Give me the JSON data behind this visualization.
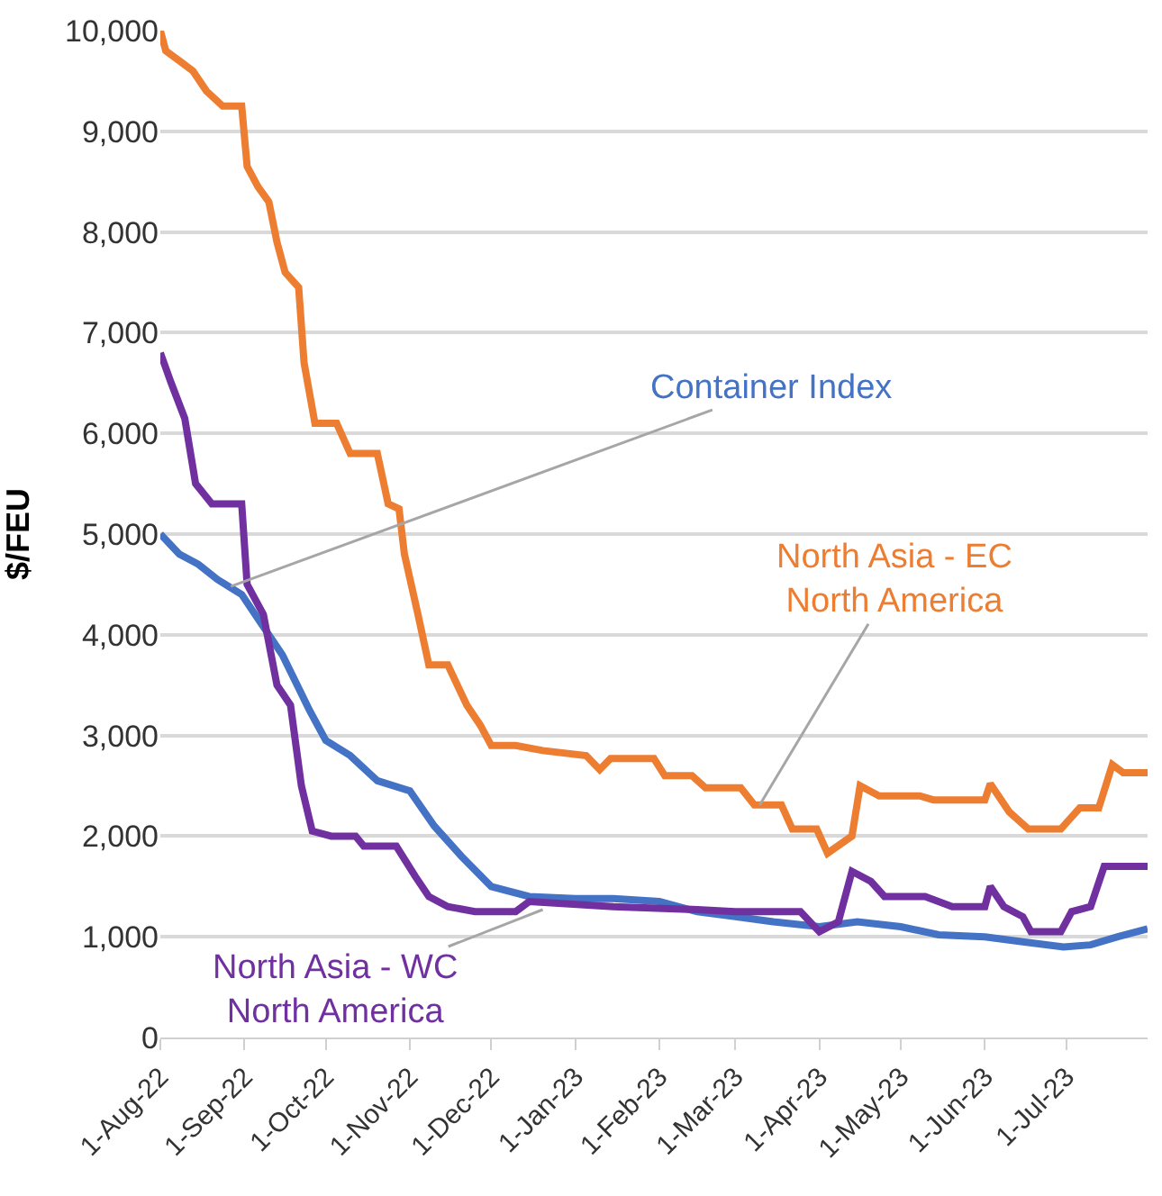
{
  "chart_data": {
    "type": "line",
    "ylabel": "$/FEU",
    "xlim": [
      "2022-08-01",
      "2023-07-31"
    ],
    "xticks": [
      {
        "value": "2022-08-01",
        "label": "1-Aug-22"
      },
      {
        "value": "2022-09-01",
        "label": "1-Sep-22"
      },
      {
        "value": "2022-10-01",
        "label": "1-Oct-22"
      },
      {
        "value": "2022-11-01",
        "label": "1-Nov-22"
      },
      {
        "value": "2022-12-01",
        "label": "1-Dec-22"
      },
      {
        "value": "2023-01-01",
        "label": "1-Jan-23"
      },
      {
        "value": "2023-02-01",
        "label": "1-Feb-23"
      },
      {
        "value": "2023-03-01",
        "label": "1-Mar-23"
      },
      {
        "value": "2023-04-01",
        "label": "1-Apr-23"
      },
      {
        "value": "2023-05-01",
        "label": "1-May-23"
      },
      {
        "value": "2023-06-01",
        "label": "1-Jun-23"
      },
      {
        "value": "2023-07-01",
        "label": "1-Jul-23"
      }
    ],
    "ylim": [
      0,
      10000
    ],
    "yticks": [
      {
        "value": 0,
        "label": "0"
      },
      {
        "value": 1000,
        "label": "1,000"
      },
      {
        "value": 2000,
        "label": "2,000"
      },
      {
        "value": 3000,
        "label": "3,000"
      },
      {
        "value": 4000,
        "label": "4,000"
      },
      {
        "value": 5000,
        "label": "5,000"
      },
      {
        "value": 6000,
        "label": "6,000"
      },
      {
        "value": 7000,
        "label": "7,000"
      },
      {
        "value": 8000,
        "label": "8,000"
      },
      {
        "value": 9000,
        "label": "9,000"
      },
      {
        "value": 10000,
        "label": "10,000"
      }
    ],
    "grid": "y",
    "marker": "none",
    "line_style": "solid",
    "series": [
      {
        "color": "#4472c4",
        "x": [
          "2022-08-01",
          "2022-08-08",
          "2022-08-15",
          "2022-08-22",
          "2022-08-31",
          "2022-09-05",
          "2022-09-15",
          "2022-09-25",
          "2022-10-01",
          "2022-10-10",
          "2022-10-20",
          "2022-11-01",
          "2022-11-10",
          "2022-11-20",
          "2022-12-01",
          "2022-12-15",
          "2023-01-01",
          "2023-01-15",
          "2023-02-01",
          "2023-02-15",
          "2023-03-01",
          "2023-03-15",
          "2023-04-01",
          "2023-04-15",
          "2023-05-01",
          "2023-05-15",
          "2023-06-01",
          "2023-06-15",
          "2023-06-30",
          "2023-07-10",
          "2023-07-20",
          "2023-07-31"
        ],
        "values": [
          5000,
          4800,
          4700,
          4550,
          4400,
          4200,
          3800,
          3250,
          2950,
          2800,
          2550,
          2450,
          2100,
          1800,
          1500,
          1400,
          1380,
          1380,
          1350,
          1250,
          1200,
          1150,
          1100,
          1150,
          1100,
          1020,
          1000,
          950,
          900,
          920,
          1000,
          1080
        ]
      },
      {
        "color": "#ed7d31",
        "x": [
          "2022-08-01",
          "2022-08-03",
          "2022-08-08",
          "2022-08-13",
          "2022-08-18",
          "2022-08-24",
          "2022-08-31",
          "2022-09-02",
          "2022-09-06",
          "2022-09-10",
          "2022-09-13",
          "2022-09-16",
          "2022-09-21",
          "2022-09-23",
          "2022-09-27",
          "2022-10-05",
          "2022-10-10",
          "2022-10-20",
          "2022-10-24",
          "2022-10-28",
          "2022-10-30",
          "2022-11-04",
          "2022-11-08",
          "2022-11-15",
          "2022-11-22",
          "2022-11-27",
          "2022-12-01",
          "2022-12-10",
          "2022-12-20",
          "2023-01-05",
          "2023-01-10",
          "2023-01-14",
          "2023-01-30",
          "2023-02-03",
          "2023-02-13",
          "2023-02-18",
          "2023-03-03",
          "2023-03-08",
          "2023-03-18",
          "2023-03-22",
          "2023-03-31",
          "2023-04-04",
          "2023-04-13",
          "2023-04-16",
          "2023-04-23",
          "2023-05-08",
          "2023-05-13",
          "2023-06-01",
          "2023-06-03",
          "2023-06-10",
          "2023-06-17",
          "2023-06-29",
          "2023-07-06",
          "2023-07-13",
          "2023-07-18",
          "2023-07-22",
          "2023-07-31"
        ],
        "values": [
          10000,
          9800,
          9700,
          9600,
          9400,
          9250,
          9250,
          8650,
          8450,
          8300,
          7900,
          7600,
          7450,
          6700,
          6100,
          6100,
          5800,
          5800,
          5300,
          5250,
          4800,
          4200,
          3700,
          3700,
          3300,
          3100,
          2900,
          2900,
          2850,
          2800,
          2660,
          2770,
          2770,
          2600,
          2600,
          2480,
          2480,
          2310,
          2310,
          2070,
          2070,
          1830,
          2000,
          2500,
          2400,
          2400,
          2360,
          2360,
          2520,
          2240,
          2070,
          2070,
          2280,
          2280,
          2710,
          2630,
          2630
        ]
      },
      {
        "color": "#7030a0",
        "x": [
          "2022-08-01",
          "2022-08-05",
          "2022-08-10",
          "2022-08-14",
          "2022-08-20",
          "2022-08-31",
          "2022-09-02",
          "2022-09-08",
          "2022-09-13",
          "2022-09-18",
          "2022-09-22",
          "2022-09-26",
          "2022-10-03",
          "2022-10-12",
          "2022-10-15",
          "2022-10-27",
          "2022-11-03",
          "2022-11-08",
          "2022-11-15",
          "2022-11-25",
          "2022-12-10",
          "2022-12-15",
          "2023-01-15",
          "2023-02-15",
          "2023-03-01",
          "2023-03-25",
          "2023-04-01",
          "2023-04-08",
          "2023-04-13",
          "2023-04-20",
          "2023-04-25",
          "2023-05-10",
          "2023-05-20",
          "2023-06-01",
          "2023-06-03",
          "2023-06-08",
          "2023-06-15",
          "2023-06-18",
          "2023-06-29",
          "2023-07-03",
          "2023-07-10",
          "2023-07-15",
          "2023-07-31"
        ],
        "values": [
          6800,
          6500,
          6150,
          5500,
          5300,
          5300,
          4500,
          4200,
          3500,
          3300,
          2500,
          2050,
          2000,
          2000,
          1900,
          1900,
          1600,
          1400,
          1300,
          1250,
          1250,
          1350,
          1300,
          1270,
          1250,
          1250,
          1050,
          1150,
          1650,
          1550,
          1400,
          1400,
          1300,
          1300,
          1500,
          1300,
          1200,
          1050,
          1050,
          1250,
          1300,
          1700,
          1700
        ]
      }
    ],
    "annotations": [
      {
        "text": "Container Index",
        "x": "2022-08-27",
        "y": 4480
      },
      {
        "text": "North Asia - EC\nNorth America",
        "x": "2023-03-10",
        "y": 2310
      },
      {
        "text": "North Asia - WC\nNorth America",
        "x": "2022-12-20",
        "y": 1270
      }
    ]
  }
}
